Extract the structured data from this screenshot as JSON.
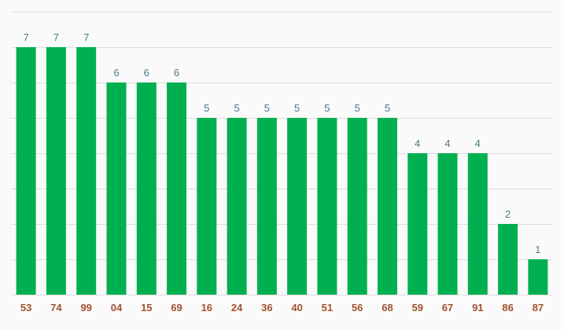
{
  "chart_data": {
    "type": "bar",
    "categories": [
      "53",
      "74",
      "99",
      "04",
      "15",
      "69",
      "16",
      "24",
      "36",
      "40",
      "51",
      "56",
      "68",
      "59",
      "67",
      "91",
      "86",
      "87"
    ],
    "values": [
      7,
      7,
      7,
      6,
      6,
      6,
      5,
      5,
      5,
      5,
      5,
      5,
      5,
      4,
      4,
      4,
      2,
      1
    ],
    "title": "",
    "xlabel": "",
    "ylabel": "",
    "ylim": [
      0,
      8
    ],
    "grid": true,
    "data_labels": true,
    "colors": {
      "bar": "#00b050",
      "data_label": "#4a7a8c",
      "tick_label": "#a0522d",
      "grid": "#dddddd",
      "background": "#fafafa"
    }
  }
}
